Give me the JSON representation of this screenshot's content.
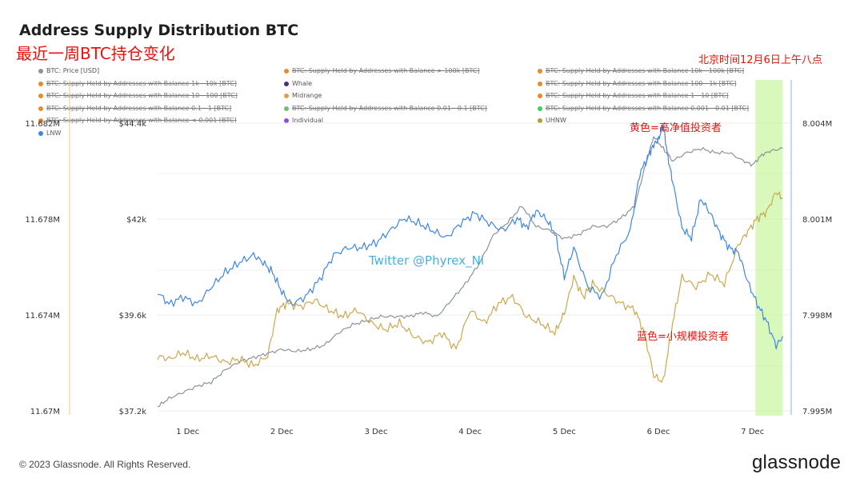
{
  "header": {
    "title": "Address Supply Distribution BTC",
    "subtitle_cn": "最近一周BTC持仓变化"
  },
  "annotations": {
    "time_note": "北京时间12月6日上午八点",
    "yellow_note": "黄色=高净值投资者",
    "blue_note": "蓝色=小规模投资者",
    "watermark": "Twitter @Phyrex_Ni"
  },
  "legend": [
    {
      "label": "BTC: Price [USD]",
      "color": "#8a9498",
      "off": false
    },
    {
      "label": "BTC: Supply Held by Addresses with Balance > 100k [BTC]",
      "color": "#e88a2c",
      "off": true
    },
    {
      "label": "BTC: Supply Held by Addresses with Balance 10k - 100k [BTC]",
      "color": "#e88a2c",
      "off": true
    },
    {
      "label": "BTC: Supply Held by Addresses with Balance 1k - 10k [BTC]",
      "color": "#e88a2c",
      "off": true
    },
    {
      "label": "Whale",
      "color": "#4a2f7e",
      "off": false
    },
    {
      "label": "BTC: Supply Held by Addresses with Balance 100 - 1k [BTC]",
      "color": "#e88a2c",
      "off": true
    },
    {
      "label": "BTC: Supply Held by Addresses with Balance 10 - 100 [BTC]",
      "color": "#e88a2c",
      "off": true
    },
    {
      "label": "Midrange",
      "color": "#e2a04a",
      "off": false
    },
    {
      "label": "BTC: Supply Held by Addresses with Balance 1 - 10 [BTC]",
      "color": "#e88a2c",
      "off": true
    },
    {
      "label": "BTC: Supply Held by Addresses with Balance 0.1 - 1 [BTC]",
      "color": "#e88a2c",
      "off": true
    },
    {
      "label": "BTC: Supply Held by Addresses with Balance 0.01 - 0.1 [BTC]",
      "color": "#6cbf74",
      "off": true
    },
    {
      "label": "BTC: Supply Held by Addresses with Balance 0.001 - 0.01 [BTC]",
      "color": "#3ad15a",
      "off": true
    },
    {
      "label": "BTC: Supply Held by Addresses with Balance < 0.001 [BTC]",
      "color": "#e88a2c",
      "off": true
    },
    {
      "label": "Individual",
      "color": "#8b4fe0",
      "off": false
    },
    {
      "label": "UHNW",
      "color": "#b79a3a",
      "off": false
    },
    {
      "label": "LNW",
      "color": "#3f86e0",
      "off": false
    }
  ],
  "chart_data": {
    "type": "line",
    "x_ticks": [
      "1 Dec",
      "2 Dec",
      "3 Dec",
      "4 Dec",
      "5 Dec",
      "6 Dec",
      "7 Dec"
    ],
    "x_range": [
      0.68,
      7.41
    ],
    "highlight_x_range": [
      7.03,
      7.32
    ],
    "left_axis_1": {
      "ticks": [
        "11.682M",
        "11.678M",
        "11.674M",
        "11.67M"
      ],
      "range": [
        11.67,
        11.682
      ],
      "unit": "M"
    },
    "left_axis_2": {
      "ticks": [
        "$44.4k",
        "$42k",
        "$39.6k",
        "$37.2k"
      ],
      "range": [
        37.2,
        44.4
      ],
      "unit": "k USD"
    },
    "right_axis": {
      "ticks": [
        "8.004M",
        "8.001M",
        "7.998M",
        "7.995M"
      ],
      "range": [
        7.995,
        8.004
      ],
      "unit": "M"
    },
    "series": [
      {
        "name": "BTC: Price [USD]",
        "axis": "left_axis_2",
        "color": "#8a9498",
        "x": [
          0.68,
          0.8,
          0.95,
          1.1,
          1.25,
          1.4,
          1.55,
          1.7,
          1.85,
          2.0,
          2.15,
          2.3,
          2.45,
          2.6,
          2.75,
          2.9,
          3.05,
          3.2,
          3.35,
          3.5,
          3.65,
          3.8,
          3.95,
          4.1,
          4.25,
          4.4,
          4.55,
          4.7,
          4.85,
          5.0,
          5.15,
          5.3,
          5.45,
          5.6,
          5.75,
          5.85,
          5.95,
          6.05,
          6.15,
          6.3,
          6.45,
          6.6,
          6.75,
          6.9,
          7.0,
          7.1,
          7.2,
          7.32
        ],
        "y": [
          37.4,
          37.6,
          37.75,
          37.9,
          38.0,
          38.3,
          38.5,
          38.6,
          38.7,
          38.8,
          38.75,
          38.8,
          38.9,
          39.2,
          39.4,
          39.5,
          39.6,
          39.6,
          39.6,
          39.7,
          39.6,
          40.0,
          40.4,
          40.9,
          41.6,
          41.9,
          42.3,
          41.8,
          41.7,
          41.5,
          41.6,
          41.8,
          41.8,
          42.0,
          42.3,
          43.2,
          44.0,
          43.7,
          43.4,
          43.6,
          43.7,
          43.6,
          43.6,
          43.4,
          43.3,
          43.55,
          43.65,
          43.7
        ]
      },
      {
        "name": "UHNW",
        "axis": "right_axis",
        "color": "#c9a850",
        "x": [
          0.68,
          0.8,
          0.95,
          1.1,
          1.25,
          1.4,
          1.55,
          1.7,
          1.85,
          1.95,
          2.05,
          2.2,
          2.35,
          2.5,
          2.65,
          2.8,
          2.95,
          3.1,
          3.25,
          3.4,
          3.55,
          3.7,
          3.85,
          4.0,
          4.15,
          4.3,
          4.45,
          4.6,
          4.75,
          4.9,
          5.0,
          5.1,
          5.2,
          5.3,
          5.45,
          5.6,
          5.75,
          5.85,
          5.95,
          6.05,
          6.15,
          6.25,
          6.4,
          6.55,
          6.7,
          6.85,
          6.95,
          7.05,
          7.15,
          7.25,
          7.32
        ],
        "y": [
          7.9968,
          7.9967,
          7.9969,
          7.9967,
          7.9968,
          7.9966,
          7.9967,
          7.9965,
          7.9968,
          7.9982,
          7.9984,
          7.9983,
          7.9985,
          7.9982,
          7.998,
          7.9982,
          7.9978,
          7.9976,
          7.9978,
          7.9974,
          7.9972,
          7.9975,
          7.997,
          7.9982,
          7.9978,
          7.9984,
          7.9986,
          7.998,
          7.9978,
          7.9975,
          7.9981,
          7.9992,
          7.9986,
          7.999,
          7.9987,
          7.9984,
          7.9982,
          7.9975,
          7.9962,
          7.996,
          7.9978,
          7.9992,
          7.9989,
          7.9993,
          7.999,
          8.0002,
          8.0006,
          8.001,
          8.0012,
          8.0018,
          8.0016
        ]
      },
      {
        "name": "LNW",
        "axis": "left_axis_1",
        "color": "#3f86e0",
        "x": [
          0.68,
          0.8,
          0.95,
          1.1,
          1.25,
          1.4,
          1.55,
          1.7,
          1.8,
          1.9,
          2.0,
          2.1,
          2.25,
          2.4,
          2.55,
          2.7,
          2.85,
          3.0,
          3.15,
          3.3,
          3.45,
          3.6,
          3.75,
          3.9,
          4.05,
          4.2,
          4.35,
          4.5,
          4.6,
          4.7,
          4.8,
          4.9,
          5.0,
          5.1,
          5.25,
          5.4,
          5.55,
          5.7,
          5.8,
          5.9,
          5.95,
          6.0,
          6.05,
          6.1,
          6.15,
          6.25,
          6.35,
          6.45,
          6.55,
          6.65,
          6.75,
          6.85,
          6.95,
          7.05,
          7.15,
          7.25,
          7.32
        ],
        "y": [
          11.675,
          11.6745,
          11.6748,
          11.6745,
          11.6752,
          11.6758,
          11.6762,
          11.6765,
          11.6762,
          11.6758,
          11.675,
          11.6745,
          11.6748,
          11.6755,
          11.6765,
          11.6768,
          11.6768,
          11.677,
          11.6775,
          11.678,
          11.6778,
          11.6775,
          11.6772,
          11.6778,
          11.6782,
          11.6778,
          11.6775,
          11.678,
          11.6776,
          11.6783,
          11.678,
          11.6774,
          11.6756,
          11.6768,
          11.6752,
          11.6748,
          11.6765,
          11.6775,
          11.6798,
          11.6806,
          11.681,
          11.6812,
          11.6818,
          11.6805,
          11.6795,
          11.6776,
          11.6772,
          11.6788,
          11.6782,
          11.6774,
          11.6768,
          11.6766,
          11.6754,
          11.6745,
          11.6738,
          11.6728,
          11.6732
        ]
      }
    ]
  },
  "footer": {
    "copyright": "© 2023 Glassnode. All Rights Reserved.",
    "brand": "glassnode"
  }
}
